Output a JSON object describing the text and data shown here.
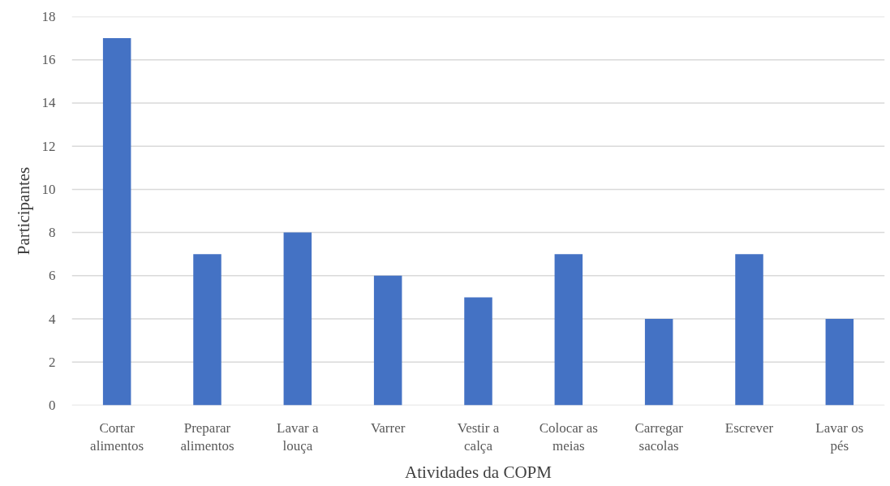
{
  "chart_data": {
    "type": "bar",
    "xlabel": "Atividades da COPM",
    "ylabel": "Participantes",
    "categories": [
      "Cortar alimentos",
      "Preparar alimentos",
      "Lavar a louça",
      "Varrer",
      "Vestir a calça",
      "Colocar as meias",
      "Carregar sacolas",
      "Escrever",
      "Lavar os pés"
    ],
    "values": [
      17,
      7,
      8,
      6,
      5,
      7,
      4,
      7,
      4
    ],
    "color": "#4472c4",
    "ylim": [
      0,
      18
    ],
    "yticks": [
      0,
      2,
      4,
      6,
      8,
      10,
      12,
      14,
      16,
      18
    ],
    "grid": "y"
  }
}
